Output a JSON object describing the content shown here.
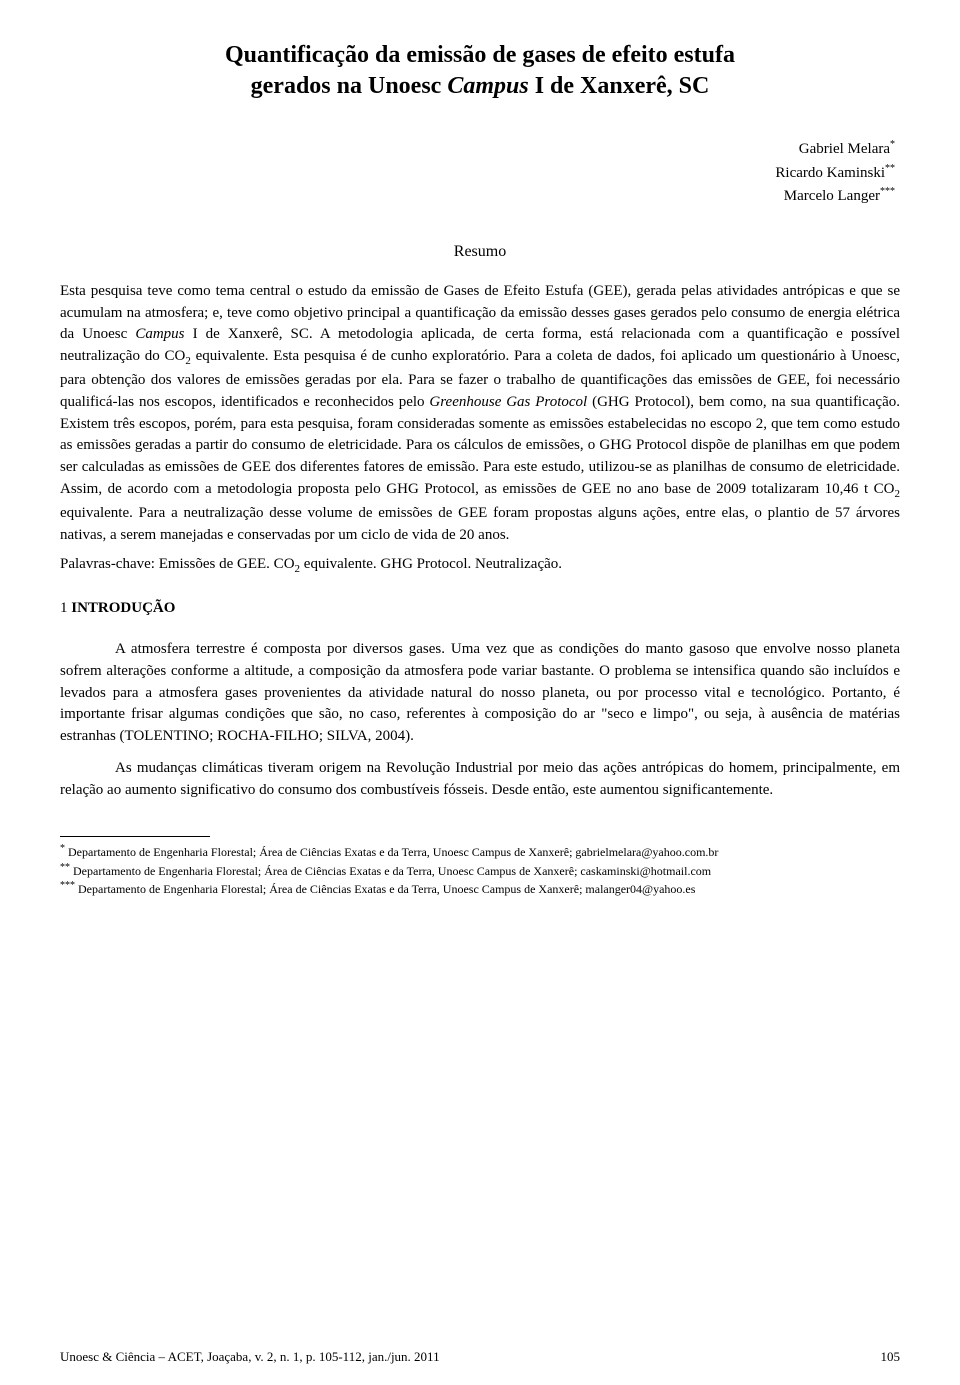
{
  "title_line1": "Quantificação da emissão de gases de efeito estufa",
  "title_line2_a": "gerados na Unoesc ",
  "title_line2_italic": "Campus",
  "title_line2_b": " I de Xanxerê, SC",
  "authors": {
    "a1": {
      "name": "Gabriel Melara",
      "mark": "*"
    },
    "a2": {
      "name": "Ricardo Kaminski",
      "mark": "**"
    },
    "a3": {
      "name": "Marcelo Langer",
      "mark": "***"
    }
  },
  "resumo_heading": "Resumo",
  "abstract_p1": "Esta pesquisa teve como tema central o estudo da emissão de Gases de Efeito Estufa (GEE), gerada pelas atividades antrópicas e que se acumulam na atmosfera; e, teve como objetivo principal a quantificação da emissão desses gases gerados pelo consumo de energia elétrica da Unoesc ",
  "abstract_campus": "Campus",
  "abstract_p2": " I de Xanxerê, SC. A metodologia aplicada, de certa forma, está relacionada com a quantificação e possível neutralização do CO",
  "abstract_sub1": "2",
  "abstract_p3": " equivalente. Esta pesquisa é de cunho exploratório. Para a coleta de dados, foi aplicado um questionário à Unoesc, para obtenção dos valores de emissões geradas por ela. Para se fazer o trabalho de quantificações das emissões de GEE, foi necessário qualificá-las nos escopos, identificados e reconhecidos pelo ",
  "abstract_ghg": "Greenhouse Gas Protocol",
  "abstract_p4": " (GHG Protocol), bem como, na sua quantificação. Existem três escopos, porém, para esta pesquisa, foram consideradas somente as emissões estabelecidas no escopo 2, que tem como estudo as emissões geradas a partir do consumo de eletricidade. Para os cálculos de emissões, o GHG Protocol dispõe de planilhas em que podem ser calculadas as emissões de GEE dos diferentes fatores de emissão. Para este estudo, utilizou-se as planilhas de consumo de eletricidade. Assim, de acordo com a metodologia proposta pelo GHG Protocol, as emissões de GEE no ano base de 2009 totalizaram 10,46 t CO",
  "abstract_sub2": "2",
  "abstract_p5": " equivalente. Para a neutralização desse volume de emissões de GEE foram propostas alguns ações, entre elas, o plantio de 57 árvores nativas, a serem manejadas e conservadas por um ciclo de vida de 20 anos.",
  "keywords_label": "Palavras-chave: ",
  "keywords_text_a": "Emissões de GEE. CO",
  "keywords_sub": "2",
  "keywords_text_b": " equivalente. GHG Protocol. Neutralização.",
  "section_number": "1 ",
  "section_title": "INTRODUÇÃO",
  "body_p1": "A atmosfera terrestre é composta por diversos gases. Uma vez que as condições do manto gasoso que envolve nosso planeta sofrem alterações conforme a altitude, a composição da atmosfera pode variar bastante. O problema se intensifica quando são incluídos e levados para a atmosfera gases provenientes da atividade natural do nosso planeta, ou por processo vital e tecnológico. Portanto, é importante frisar algumas condições que são, no caso, referentes à composição do ar \"seco e limpo\", ou seja, à ausência de matérias estranhas (TOLENTINO; ROCHA-FILHO; SILVA, 2004).",
  "body_p2": "As mudanças climáticas tiveram origem na Revolução Industrial por meio das ações antrópicas do homem, principalmente, em relação ao aumento significativo do consumo dos combustíveis fósseis. Desde então, este aumentou significantemente.",
  "footnotes": {
    "f1": {
      "mark": "*",
      "text": " Departamento de Engenharia Florestal; Área de Ciências Exatas e da Terra, Unoesc Campus de Xanxerê; gabrielmelara@yahoo.com.br"
    },
    "f2": {
      "mark": "**",
      "text": " Departamento de Engenharia Florestal; Área de Ciências Exatas e da Terra, Unoesc Campus de Xanxerê; caskaminski@hotmail.com"
    },
    "f3": {
      "mark": "***",
      "text": " Departamento de Engenharia Florestal; Área de Ciências Exatas e da Terra, Unoesc Campus de Xanxerê; malanger04@yahoo.es"
    }
  },
  "footer_citation": "Unoesc & Ciência – ACET, Joaçaba, v. 2, n. 1, p. 105-112, jan./jun. 2011",
  "page_number": "105",
  "colors": {
    "text": "#000000",
    "background": "#ffffff"
  },
  "typography": {
    "title_fontsize": 24,
    "body_fontsize": 15,
    "footnote_fontsize": 12,
    "footer_fontsize": 13
  }
}
